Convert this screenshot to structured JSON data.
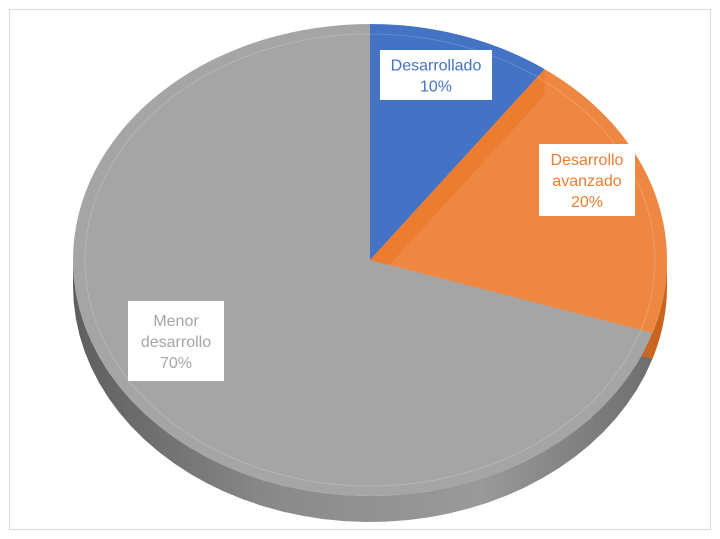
{
  "chart_data": {
    "type": "pie",
    "title": "",
    "categories": [
      "Desarrollado",
      "Desarrollo avanzado",
      "Menor desarrollo"
    ],
    "values": [
      10,
      20,
      70
    ],
    "colors": [
      "#4472C4",
      "#ED7D31",
      "#A5A5A5"
    ],
    "data_labels": [
      {
        "lines": [
          "Desarrollado",
          "10%"
        ],
        "color": "#4472C4"
      },
      {
        "lines": [
          "Desarrollo",
          "avanzado",
          "20%"
        ],
        "color": "#ED7D31"
      },
      {
        "lines": [
          "Menor",
          "desarrollo",
          "70%"
        ],
        "color": "#A5A5A5"
      }
    ],
    "style": "3d",
    "legend": "none"
  }
}
